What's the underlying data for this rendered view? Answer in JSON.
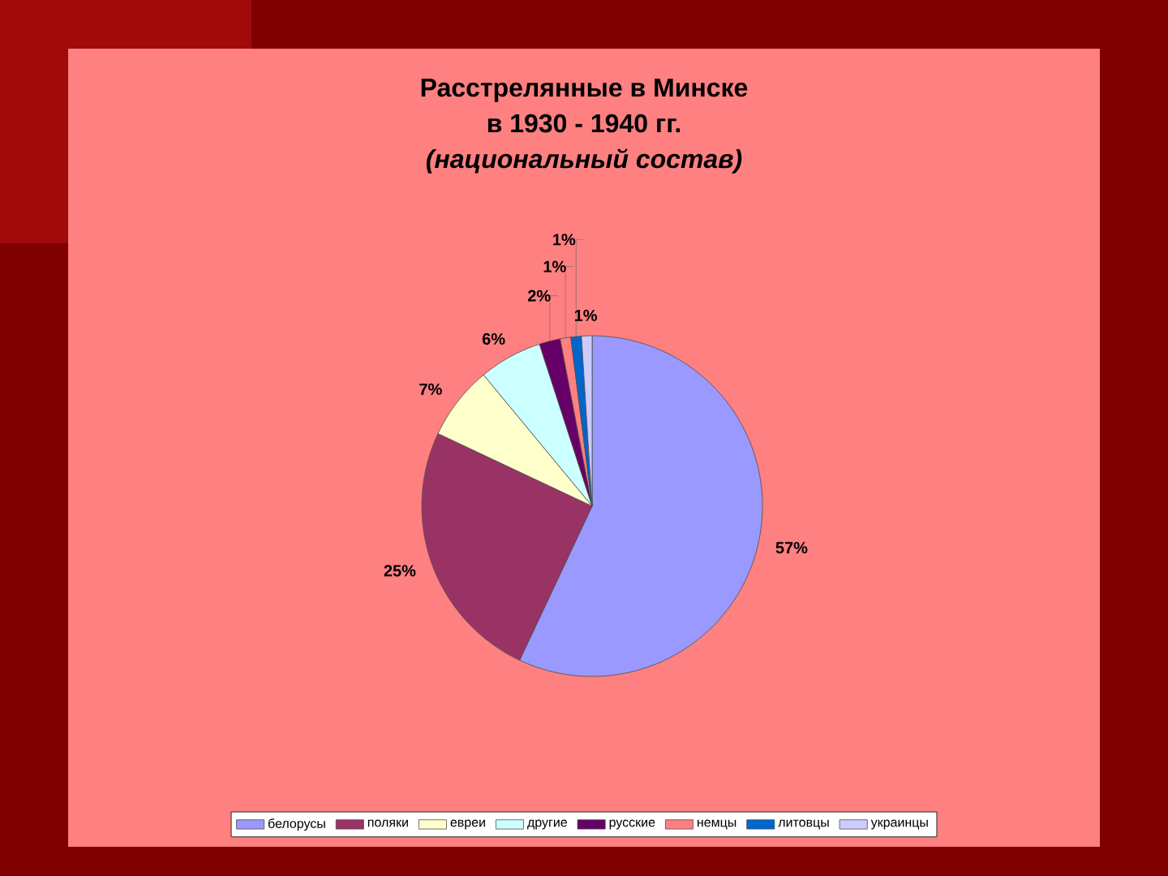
{
  "chart_data": {
    "type": "pie",
    "title": "Расстрелянные в Минске\nв 1930 - 1940 гг.\n*(национальный состав)*",
    "categories": [
      "белорусы",
      "поляки",
      "евреи",
      "другие",
      "русские",
      "немцы",
      "литовцы",
      "украинцы"
    ],
    "values": [
      57,
      25,
      7,
      6,
      2,
      1,
      1,
      1
    ],
    "value_labels": [
      "57%",
      "25%",
      "7%",
      "6%",
      "2%",
      "1%",
      "1%",
      "1%"
    ],
    "colors": [
      "#9999ff",
      "#993366",
      "#ffffcc",
      "#ccffff",
      "#660066",
      "#ff8080",
      "#0066cc",
      "#ccccff"
    ],
    "legend": "bottom"
  }
}
